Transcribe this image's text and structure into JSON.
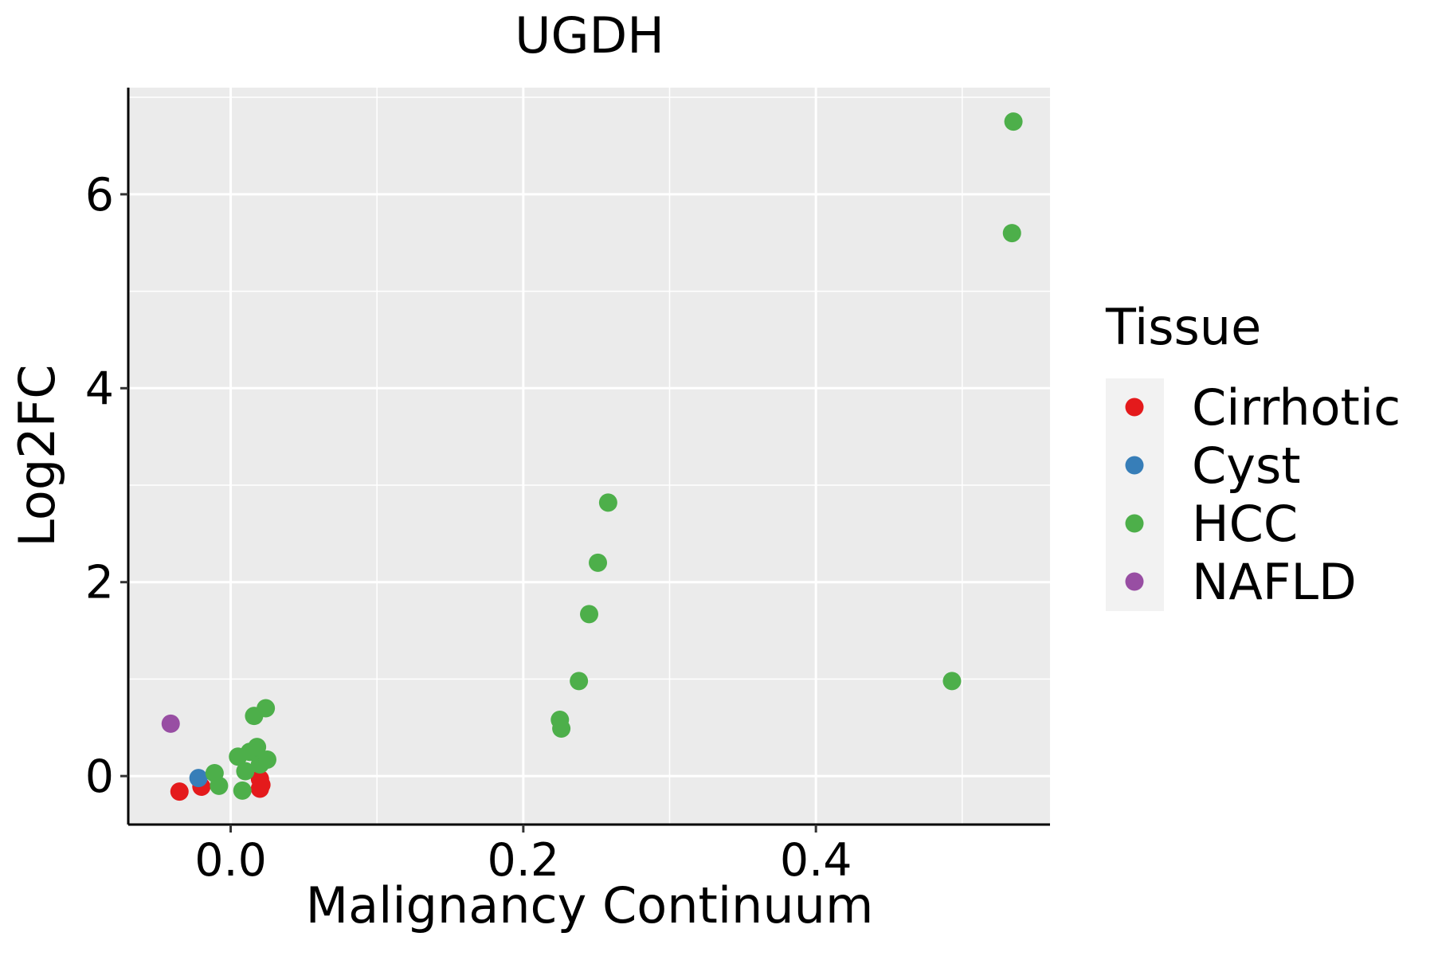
{
  "chart_data": {
    "type": "scatter",
    "title": "UGDH",
    "xlabel": "Malignancy Continuum",
    "ylabel": "Log2FC",
    "xlim": [
      -0.07,
      0.56
    ],
    "ylim": [
      -0.5,
      7.1
    ],
    "x_ticks": [
      0.0,
      0.2,
      0.4
    ],
    "x_tick_labels": [
      "0.0",
      "0.2",
      "0.4"
    ],
    "y_ticks": [
      0,
      2,
      4,
      6
    ],
    "y_tick_labels": [
      "0",
      "2",
      "4",
      "6"
    ],
    "grid": true,
    "legend": {
      "title": "Tissue",
      "position": "right",
      "entries": [
        {
          "name": "Cirrhotic",
          "color": "#E41A1C"
        },
        {
          "name": "Cyst",
          "color": "#377EB8"
        },
        {
          "name": "HCC",
          "color": "#4DAF4A"
        },
        {
          "name": "NAFLD",
          "color": "#984EA3"
        }
      ]
    },
    "series": [
      {
        "name": "Cirrhotic",
        "color": "#E41A1C",
        "points": [
          [
            -0.035,
            -0.16
          ],
          [
            -0.02,
            -0.11
          ],
          [
            0.02,
            -0.03
          ],
          [
            0.02,
            -0.13
          ],
          [
            0.021,
            -0.09
          ]
        ]
      },
      {
        "name": "Cyst",
        "color": "#377EB8",
        "points": [
          [
            -0.022,
            -0.02
          ]
        ]
      },
      {
        "name": "HCC",
        "color": "#4DAF4A",
        "points": [
          [
            -0.011,
            0.03
          ],
          [
            -0.008,
            -0.1
          ],
          [
            0.005,
            0.2
          ],
          [
            0.008,
            -0.15
          ],
          [
            0.01,
            0.05
          ],
          [
            0.013,
            0.25
          ],
          [
            0.016,
            0.62
          ],
          [
            0.018,
            0.3
          ],
          [
            0.02,
            0.12
          ],
          [
            0.024,
            0.7
          ],
          [
            0.025,
            0.17
          ],
          [
            0.225,
            0.58
          ],
          [
            0.226,
            0.49
          ],
          [
            0.238,
            0.98
          ],
          [
            0.245,
            1.67
          ],
          [
            0.251,
            2.2
          ],
          [
            0.258,
            2.82
          ],
          [
            0.493,
            0.98
          ],
          [
            0.534,
            5.6
          ],
          [
            0.535,
            6.75
          ]
        ]
      },
      {
        "name": "NAFLD",
        "color": "#984EA3",
        "points": [
          [
            -0.041,
            0.54
          ]
        ]
      }
    ]
  }
}
